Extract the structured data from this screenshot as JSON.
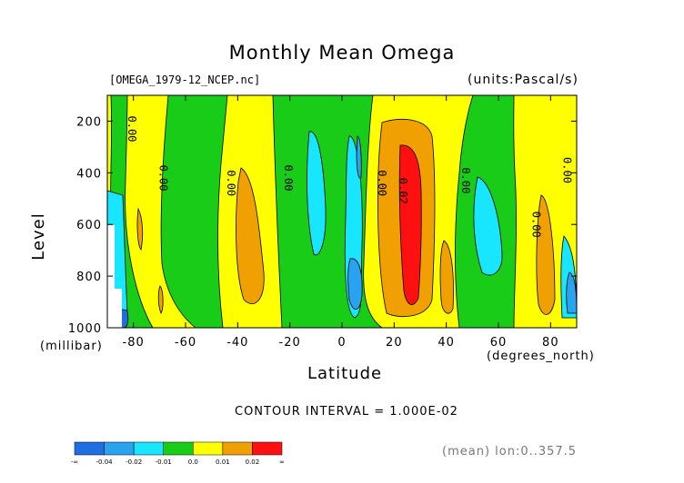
{
  "chart_data": {
    "type": "heatmap",
    "title": "Monthly Mean Omega",
    "file_label": "[OMEGA_1979-12_NCEP.nc]",
    "units_label": "(units:Pascal/s)",
    "ylabel": "Level",
    "yunit": "(millibar)",
    "xlabel": "Latitude",
    "xunit": "(degrees_north)",
    "xlim": [
      -90,
      90
    ],
    "ylim": [
      1000,
      100
    ],
    "x_ticks": [
      -80,
      -60,
      -40,
      -20,
      0,
      20,
      40,
      60,
      80
    ],
    "x_tick_labels": [
      "-80",
      "-60",
      "-40",
      "-20",
      "0",
      "20",
      "40",
      "60",
      "80"
    ],
    "y_ticks": [
      200,
      400,
      600,
      800,
      1000
    ],
    "y_tick_labels": [
      "200",
      "400",
      "600",
      "800",
      "1000"
    ],
    "contour_interval_label": "CONTOUR INTERVAL = 1.000E-02",
    "mean_label": "(mean) lon:0..357.5",
    "colorbar": {
      "boundaries": [
        "-∞",
        "-0.04",
        "-0.02",
        "-0.01",
        "0.0",
        "0.01",
        "0.02",
        "∞"
      ],
      "colors": [
        "#1f6fe0",
        "#29a3f0",
        "#18e6ff",
        "#18cc18",
        "#ffff00",
        "#f0a000",
        "#ff1010"
      ]
    },
    "contour_labels": [
      {
        "lon": -82,
        "lev": 230,
        "text": "0.00"
      },
      {
        "lon": -70,
        "lev": 420,
        "text": "0.00"
      },
      {
        "lon": -44,
        "lev": 440,
        "text": "0.00"
      },
      {
        "lon": -22,
        "lev": 420,
        "text": "0.00"
      },
      {
        "lon": 14,
        "lev": 440,
        "text": "0.00"
      },
      {
        "lon": 22,
        "lev": 470,
        "text": "0.02"
      },
      {
        "lon": 46,
        "lev": 430,
        "text": "0.00"
      },
      {
        "lon": 73,
        "lev": 600,
        "text": "0.00"
      },
      {
        "lon": 85,
        "lev": 390,
        "text": "0.00"
      }
    ]
  }
}
